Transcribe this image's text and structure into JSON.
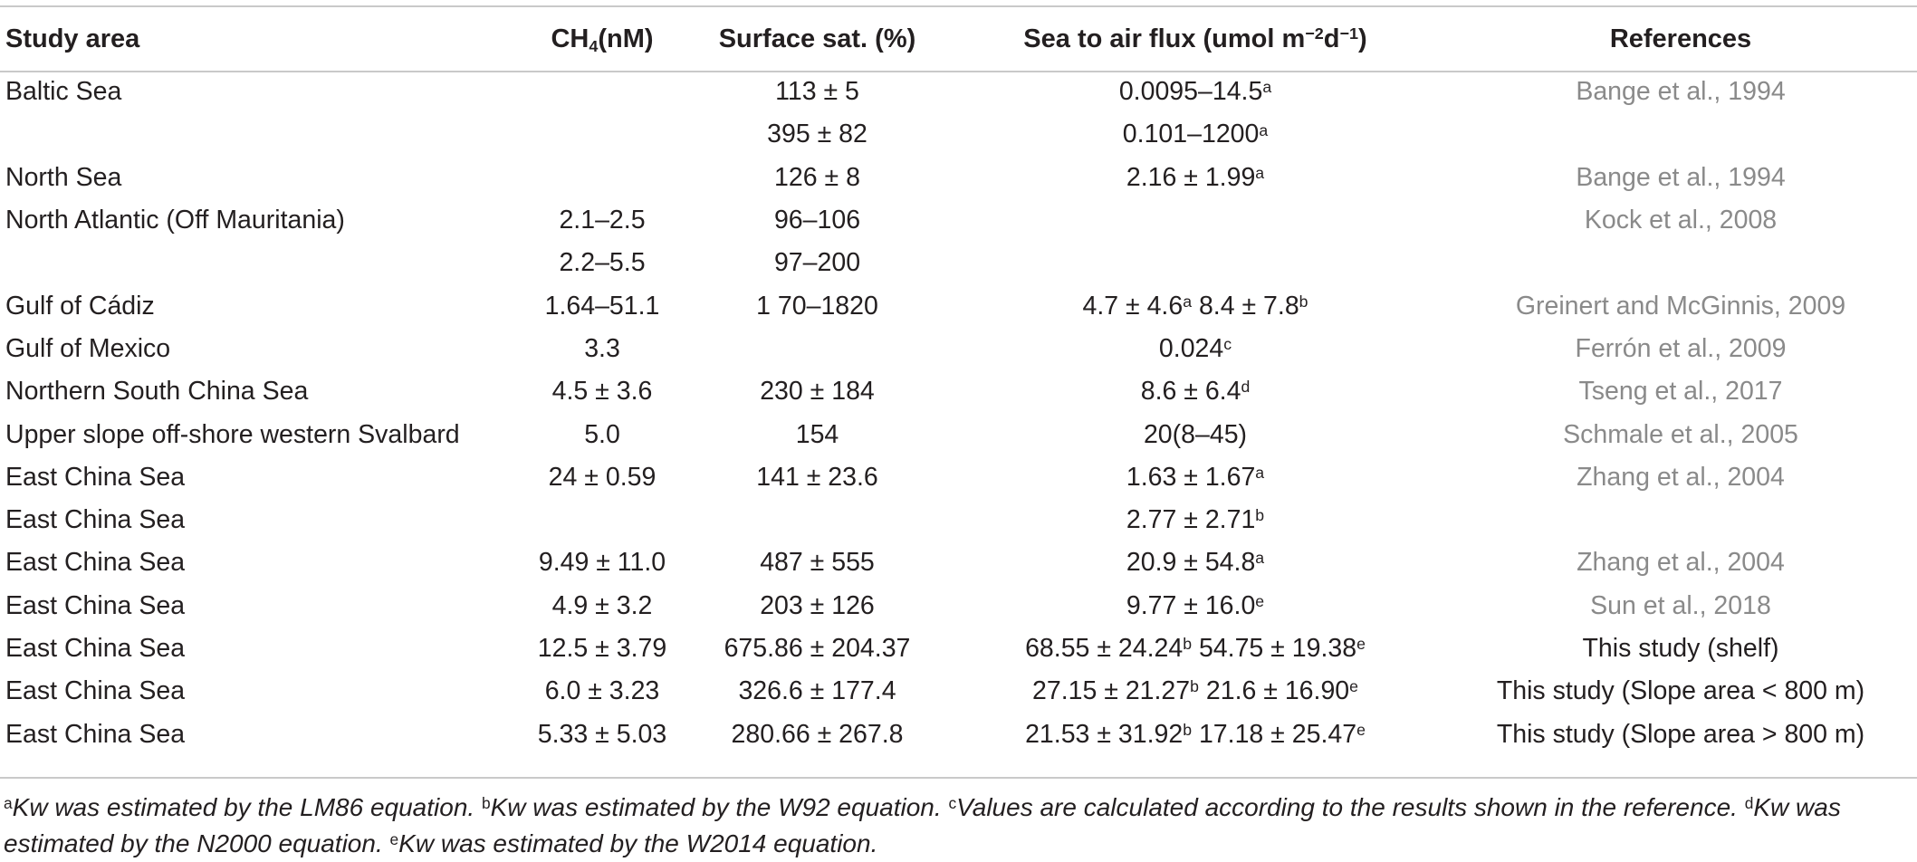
{
  "table": {
    "headers": {
      "study_area": "Study area",
      "ch4_main": "CH",
      "ch4_sub": "4",
      "ch4_tail": "(nM)",
      "surface_sat": "Surface sat. (%)",
      "flux_main": "Sea to air flux (umol m",
      "flux_exp1": "−2",
      "flux_mid": "d",
      "flux_exp2": "−1",
      "flux_tail": ")",
      "references": "References"
    },
    "rows": [
      {
        "area": "Baltic Sea",
        "ch4": "",
        "sat": "113 ± 5",
        "flux": "0.0095–14.5",
        "flux_sup": "a",
        "flux2": "",
        "flux2_sup": "",
        "ref": "Bange et al., 1994",
        "ref_style": "gray"
      },
      {
        "area": "",
        "ch4": "",
        "sat": "395 ± 82",
        "flux": "0.101–1200",
        "flux_sup": "a",
        "flux2": "",
        "flux2_sup": "",
        "ref": "",
        "ref_style": "gray"
      },
      {
        "area": "North Sea",
        "ch4": "",
        "sat": "126 ± 8",
        "flux": "2.16 ± 1.99",
        "flux_sup": "a",
        "flux2": "",
        "flux2_sup": "",
        "ref": "Bange et al., 1994",
        "ref_style": "gray"
      },
      {
        "area": "North Atlantic (Off Mauritania)",
        "ch4": "2.1–2.5",
        "sat": "96–106",
        "flux": "",
        "flux_sup": "",
        "flux2": "",
        "flux2_sup": "",
        "ref": "Kock et al., 2008",
        "ref_style": "gray"
      },
      {
        "area": "",
        "ch4": "2.2–5.5",
        "sat": "97–200",
        "flux": "",
        "flux_sup": "",
        "flux2": "",
        "flux2_sup": "",
        "ref": "",
        "ref_style": "gray"
      },
      {
        "area": "Gulf of Cádiz",
        "ch4": "1.64–51.1",
        "sat": "1 70–1820",
        "flux": "4.7 ± 4.6",
        "flux_sup": "a",
        "flux2": " 8.4 ± 7.8",
        "flux2_sup": "b",
        "ref": "Greinert and McGinnis, 2009",
        "ref_style": "gray"
      },
      {
        "area": "Gulf of Mexico",
        "ch4": "3.3",
        "sat": "",
        "flux": "0.024",
        "flux_sup": "c",
        "flux2": "",
        "flux2_sup": "",
        "ref": "Ferrón et al., 2009",
        "ref_style": "gray"
      },
      {
        "area": "Northern South China Sea",
        "ch4": "4.5 ± 3.6",
        "sat": "230 ± 184",
        "flux": "8.6 ± 6.4",
        "flux_sup": "d",
        "flux2": "",
        "flux2_sup": "",
        "ref": "Tseng et al., 2017",
        "ref_style": "gray"
      },
      {
        "area": "Upper slope off-shore western Svalbard",
        "ch4": "5.0",
        "sat": "154",
        "flux": "20(8–45)",
        "flux_sup": "",
        "flux2": "",
        "flux2_sup": "",
        "ref": "Schmale et al., 2005",
        "ref_style": "gray"
      },
      {
        "area": "East China Sea",
        "ch4": "24 ± 0.59",
        "sat": "141 ± 23.6",
        "flux": "1.63 ± 1.67",
        "flux_sup": "a",
        "flux2": "",
        "flux2_sup": "",
        "ref": "Zhang et al., 2004",
        "ref_style": "gray"
      },
      {
        "area": "East China Sea",
        "ch4": "",
        "sat": "",
        "flux": "2.77 ± 2.71",
        "flux_sup": "b",
        "flux2": "",
        "flux2_sup": "",
        "ref": "",
        "ref_style": "gray"
      },
      {
        "area": "East China Sea",
        "ch4": "9.49 ± 11.0",
        "sat": "487 ± 555",
        "flux": "20.9 ± 54.8",
        "flux_sup": "a",
        "flux2": "",
        "flux2_sup": "",
        "ref": "Zhang et al., 2004",
        "ref_style": "gray"
      },
      {
        "area": "East China Sea",
        "ch4": "4.9 ± 3.2",
        "sat": "203 ± 126",
        "flux": "9.77 ± 16.0",
        "flux_sup": "e",
        "flux2": "",
        "flux2_sup": "",
        "ref": "Sun et al., 2018",
        "ref_style": "gray"
      },
      {
        "area": "East China Sea",
        "ch4": "12.5 ± 3.79",
        "sat": "675.86 ± 204.37",
        "flux": "68.55 ± 24.24",
        "flux_sup": "b",
        "flux2": " 54.75 ± 19.38",
        "flux2_sup": "e",
        "ref": "This study (shelf)",
        "ref_style": "black"
      },
      {
        "area": "East China Sea",
        "ch4": "6.0 ± 3.23",
        "sat": "326.6 ± 177.4",
        "flux": "27.15 ± 21.27",
        "flux_sup": "b",
        "flux2": " 21.6 ± 16.90",
        "flux2_sup": "e",
        "ref": "This study (Slope area < 800 m)",
        "ref_style": "black"
      },
      {
        "area": "East China Sea",
        "ch4": "5.33 ± 5.03",
        "sat": "280.66 ± 267.8",
        "flux": "21.53 ± 31.92",
        "flux_sup": "b",
        "flux2": " 17.18 ± 25.47",
        "flux2_sup": "e",
        "ref": "This study (Slope area > 800 m)",
        "ref_style": "black"
      }
    ]
  },
  "footnotes": [
    {
      "mark": "a",
      "text": "Kw was estimated by the LM86 equation. "
    },
    {
      "mark": "b",
      "text": "Kw was estimated by the W92 equation. "
    },
    {
      "mark": "c",
      "text": "Values are calculated according to the results shown in the reference. "
    },
    {
      "mark": "d",
      "text": "Kw was estimated by the N2000 equation. "
    },
    {
      "mark": "e",
      "text": "Kw was estimated by the W2014 equation."
    }
  ]
}
